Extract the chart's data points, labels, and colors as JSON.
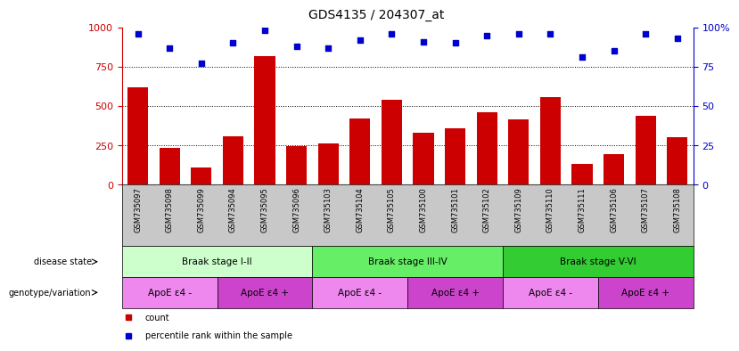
{
  "title": "GDS4135 / 204307_at",
  "samples": [
    "GSM735097",
    "GSM735098",
    "GSM735099",
    "GSM735094",
    "GSM735095",
    "GSM735096",
    "GSM735103",
    "GSM735104",
    "GSM735105",
    "GSM735100",
    "GSM735101",
    "GSM735102",
    "GSM735109",
    "GSM735110",
    "GSM735111",
    "GSM735106",
    "GSM735107",
    "GSM735108"
  ],
  "counts": [
    620,
    235,
    110,
    310,
    820,
    245,
    260,
    420,
    540,
    330,
    360,
    460,
    415,
    555,
    135,
    195,
    440,
    300
  ],
  "percentiles": [
    96,
    87,
    77,
    90,
    98,
    88,
    87,
    92,
    96,
    91,
    90,
    95,
    96,
    96,
    81,
    85,
    96,
    93
  ],
  "ylim_left": [
    0,
    1000
  ],
  "ylim_right": [
    0,
    100
  ],
  "yticks_left": [
    0,
    250,
    500,
    750,
    1000
  ],
  "yticks_right": [
    0,
    25,
    50,
    75,
    100
  ],
  "bar_color": "#cc0000",
  "dot_color": "#0000cc",
  "disease_state_groups": [
    {
      "label": "Braak stage I-II",
      "start": 0,
      "end": 6,
      "color": "#ccffcc"
    },
    {
      "label": "Braak stage III-IV",
      "start": 6,
      "end": 12,
      "color": "#66ee66"
    },
    {
      "label": "Braak stage V-VI",
      "start": 12,
      "end": 18,
      "color": "#33cc33"
    }
  ],
  "genotype_groups": [
    {
      "label": "ApoE ε4 -",
      "start": 0,
      "end": 3,
      "color": "#ee88ee"
    },
    {
      "label": "ApoE ε4 +",
      "start": 3,
      "end": 6,
      "color": "#cc44cc"
    },
    {
      "label": "ApoE ε4 -",
      "start": 6,
      "end": 9,
      "color": "#ee88ee"
    },
    {
      "label": "ApoE ε4 +",
      "start": 9,
      "end": 12,
      "color": "#cc44cc"
    },
    {
      "label": "ApoE ε4 -",
      "start": 12,
      "end": 15,
      "color": "#ee88ee"
    },
    {
      "label": "ApoE ε4 +",
      "start": 15,
      "end": 18,
      "color": "#cc44cc"
    }
  ],
  "legend_count_label": "count",
  "legend_pct_label": "percentile rank within the sample",
  "legend_count_color": "#cc0000",
  "legend_pct_color": "#0000cc",
  "label_disease_state": "disease state",
  "label_genotype": "genotype/variation",
  "background_color": "#ffffff",
  "tick_label_color_left": "#cc0000",
  "tick_label_color_right": "#0000cc",
  "xtick_bg_color": "#c8c8c8",
  "bar_width": 0.65
}
